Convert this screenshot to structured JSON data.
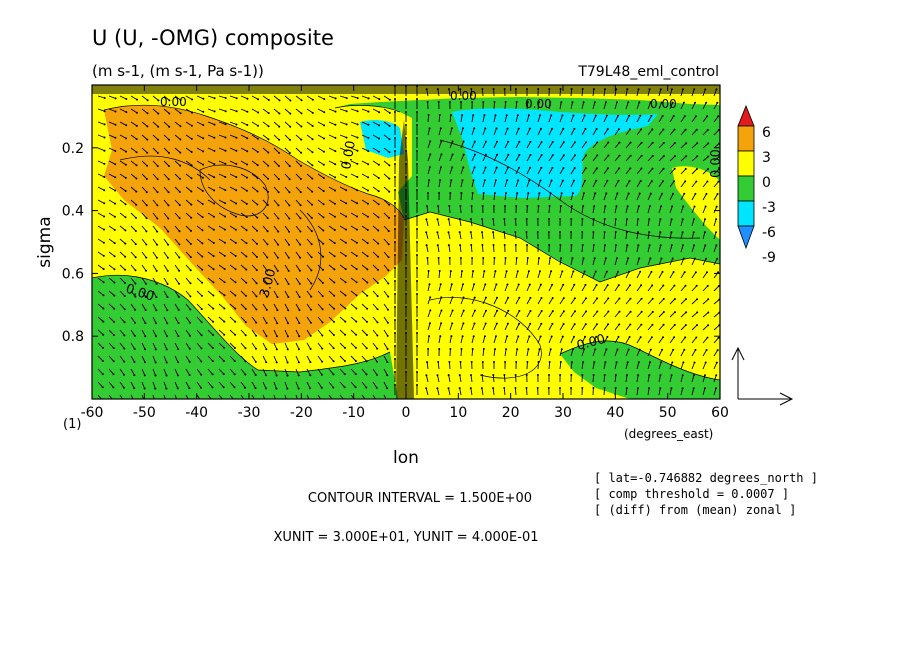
{
  "chart_data": {
    "type": "heatmap",
    "title": "U (U, -OMG) composite",
    "subtitle": "(m s-1, (m s-1, Pa s-1))",
    "run_label": "T79L48_eml_control",
    "xlabel": "lon",
    "xunits": "(degrees_east)",
    "ylabel": "sigma",
    "y_axis_extra_label": "(1)",
    "x_ticks": [
      "-60",
      "-50",
      "-40",
      "-30",
      "-20",
      "-10",
      "0",
      "10",
      "20",
      "30",
      "40",
      "50",
      "60"
    ],
    "y_ticks": [
      "0.2",
      "0.4",
      "0.6",
      "0.8"
    ],
    "xlim": [
      -60,
      60
    ],
    "ylim": [
      1.0,
      0.0
    ],
    "colorbar": {
      "labels": [
        "6",
        "3",
        "0",
        "-3",
        "-6",
        "-9"
      ],
      "colors": [
        "#e31a1c",
        "#f5a30a",
        "#ffff00",
        "#33cc33",
        "#00e5ff",
        "#1f8fff"
      ]
    },
    "fill_colors": {
      "orange": "#f5a30a",
      "yellow": "#ffff00",
      "green": "#33cc33",
      "cyan": "#00e5ff"
    },
    "contour_labels": [
      "0.00",
      "3.00",
      "0.00",
      "0.00",
      "0.00",
      "0.00",
      "0.00",
      "0.00",
      "0.00"
    ],
    "contour_interval": "CONTOUR INTERVAL = 1.500E+00",
    "units_line": "XUNIT = 3.000E+01, YUNIT = 4.000E-01",
    "info": [
      "[ lat=-0.746882 degrees_north ]",
      "[ comp threshold = 0.0007 ]",
      "[ (diff) from (mean) zonal ]"
    ]
  }
}
